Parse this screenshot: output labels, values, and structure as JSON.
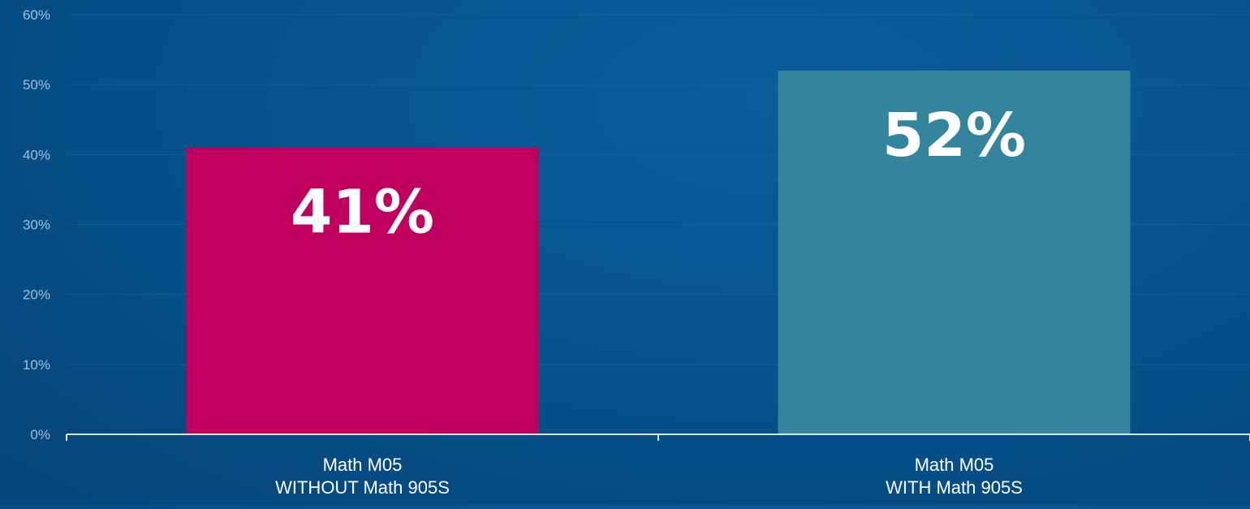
{
  "chart_data": {
    "type": "bar",
    "title": "",
    "xlabel": "",
    "ylabel": "",
    "ylim": [
      0,
      60
    ],
    "y_ticks": [
      "0%",
      "10%",
      "20%",
      "30%",
      "40%",
      "50%",
      "60%"
    ],
    "grid": true,
    "categories": [
      [
        "Math M05",
        "WITHOUT Math 905S"
      ],
      [
        "Math M05",
        "WITH Math 905S"
      ]
    ],
    "values": [
      41,
      52
    ],
    "data_labels": [
      "41%",
      "52%"
    ],
    "colors": [
      "#bf005f",
      "#33849c"
    ]
  }
}
